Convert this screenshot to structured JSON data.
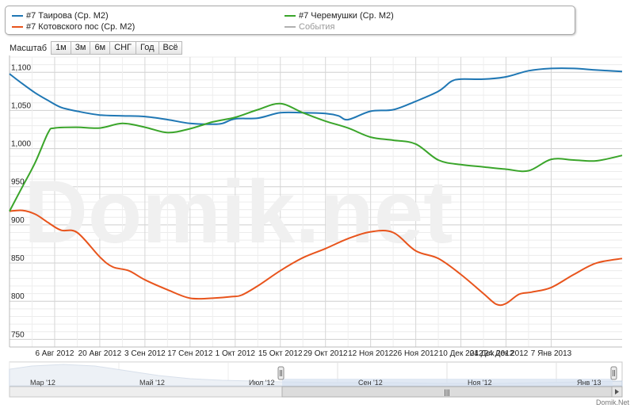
{
  "legend": {
    "items": [
      {
        "label": "#7 Таирова (Ср. М2)",
        "color": "#1f77b4"
      },
      {
        "label": "#7 Котовского пос (Ср. М2)",
        "color": "#e8541c"
      },
      {
        "label": "#7 Черемушки (Ср. М2)",
        "color": "#3aa52a"
      },
      {
        "label": "События",
        "color": "#b0b0b0"
      }
    ]
  },
  "range_selector": {
    "label": "Масштаб",
    "buttons": [
      "1м",
      "3м",
      "6м",
      "СНГ",
      "Год",
      "Всё"
    ]
  },
  "watermark": "Domik.net",
  "credit": "Domik.Net",
  "navigator": {
    "labels": [
      "Мар '12",
      "Май '12",
      "Июл '12",
      "Сен '12",
      "Ноя '12",
      "Янв '13"
    ],
    "scroll_grip": "|||"
  },
  "chart_data": {
    "type": "line",
    "ylim": [
      740,
      1120
    ],
    "yticks": [
      750,
      800,
      850,
      900,
      950,
      1000,
      1050,
      1100
    ],
    "ytick_labels": [
      "750",
      "800",
      "850",
      "900",
      "950",
      "1,000",
      "1,050",
      "1,100"
    ],
    "xlim": [
      "2012-07-23",
      "2013-01-29"
    ],
    "xticks": [
      "2012-08-06",
      "2012-08-20",
      "2012-09-03",
      "2012-09-17",
      "2012-10-01",
      "2012-10-15",
      "2012-10-29",
      "2012-11-12",
      "2012-11-26",
      "2012-12-10",
      "2012-12-24",
      "2013-01-07"
    ],
    "xtick_labels": [
      "6 Авг 2012",
      "20 Авг 2012",
      "3 Сен 2012",
      "17 Сен 2012",
      "1 Окт 2012",
      "15 Окт 2012",
      "29 Окт 2012",
      "12 Ноя 2012",
      "26 Ноя 2012",
      "10 Дек 2012",
      "24 Дек 2012",
      "7 Янв 2013"
    ],
    "overlap_tick_label": "24 Дек 2012",
    "grid": true,
    "series": [
      {
        "name": "#7 Таирова (Ср. М2)",
        "color": "#1f77b4",
        "points": [
          [
            "2012-07-23",
            1098
          ],
          [
            "2012-07-27",
            1085
          ],
          [
            "2012-07-31",
            1073
          ],
          [
            "2012-08-04",
            1063
          ],
          [
            "2012-08-08",
            1054
          ],
          [
            "2012-08-13",
            1049
          ],
          [
            "2012-08-20",
            1044
          ],
          [
            "2012-08-27",
            1043
          ],
          [
            "2012-09-03",
            1042
          ],
          [
            "2012-09-10",
            1038
          ],
          [
            "2012-09-17",
            1033
          ],
          [
            "2012-09-24",
            1032
          ],
          [
            "2012-09-27",
            1033
          ],
          [
            "2012-10-01",
            1039
          ],
          [
            "2012-10-08",
            1040
          ],
          [
            "2012-10-15",
            1047
          ],
          [
            "2012-10-22",
            1047
          ],
          [
            "2012-10-29",
            1046
          ],
          [
            "2012-11-02",
            1043
          ],
          [
            "2012-11-05",
            1038
          ],
          [
            "2012-11-12",
            1049
          ],
          [
            "2012-11-19",
            1051
          ],
          [
            "2012-11-26",
            1062
          ],
          [
            "2012-12-03",
            1075
          ],
          [
            "2012-12-07",
            1088
          ],
          [
            "2012-12-10",
            1091
          ],
          [
            "2012-12-17",
            1091
          ],
          [
            "2012-12-24",
            1094
          ],
          [
            "2012-12-31",
            1102
          ],
          [
            "2013-01-07",
            1105
          ],
          [
            "2013-01-14",
            1105
          ],
          [
            "2013-01-21",
            1103
          ],
          [
            "2013-01-29",
            1101
          ]
        ]
      },
      {
        "name": "#7 Котовского пос (Ср. М2)",
        "color": "#e8541c",
        "points": [
          [
            "2012-07-23",
            918
          ],
          [
            "2012-07-27",
            919
          ],
          [
            "2012-07-31",
            914
          ],
          [
            "2012-08-04",
            903
          ],
          [
            "2012-08-08",
            893
          ],
          [
            "2012-08-13",
            890
          ],
          [
            "2012-08-20",
            858
          ],
          [
            "2012-08-24",
            845
          ],
          [
            "2012-08-29",
            840
          ],
          [
            "2012-09-03",
            828
          ],
          [
            "2012-09-10",
            815
          ],
          [
            "2012-09-17",
            804
          ],
          [
            "2012-09-24",
            804
          ],
          [
            "2012-09-30",
            806
          ],
          [
            "2012-10-03",
            808
          ],
          [
            "2012-10-08",
            820
          ],
          [
            "2012-10-15",
            840
          ],
          [
            "2012-10-22",
            857
          ],
          [
            "2012-10-29",
            869
          ],
          [
            "2012-11-05",
            882
          ],
          [
            "2012-11-12",
            891
          ],
          [
            "2012-11-19",
            890
          ],
          [
            "2012-11-26",
            866
          ],
          [
            "2012-12-03",
            856
          ],
          [
            "2012-12-10",
            835
          ],
          [
            "2012-12-17",
            810
          ],
          [
            "2012-12-21",
            796
          ],
          [
            "2012-12-24",
            797
          ],
          [
            "2012-12-28",
            809
          ],
          [
            "2013-01-01",
            812
          ],
          [
            "2013-01-07",
            818
          ],
          [
            "2013-01-14",
            835
          ],
          [
            "2013-01-21",
            850
          ],
          [
            "2013-01-29",
            856
          ]
        ]
      },
      {
        "name": "#7 Черемушки (Ср. М2)",
        "color": "#3aa52a",
        "points": [
          [
            "2012-07-23",
            918
          ],
          [
            "2012-07-27",
            950
          ],
          [
            "2012-07-31",
            982
          ],
          [
            "2012-08-04",
            1021
          ],
          [
            "2012-08-06",
            1027
          ],
          [
            "2012-08-13",
            1028
          ],
          [
            "2012-08-20",
            1027
          ],
          [
            "2012-08-27",
            1033
          ],
          [
            "2012-09-03",
            1028
          ],
          [
            "2012-09-10",
            1021
          ],
          [
            "2012-09-17",
            1026
          ],
          [
            "2012-09-24",
            1035
          ],
          [
            "2012-10-01",
            1041
          ],
          [
            "2012-10-08",
            1051
          ],
          [
            "2012-10-15",
            1059
          ],
          [
            "2012-10-22",
            1047
          ],
          [
            "2012-10-29",
            1036
          ],
          [
            "2012-11-05",
            1027
          ],
          [
            "2012-11-12",
            1015
          ],
          [
            "2012-11-19",
            1011
          ],
          [
            "2012-11-26",
            1006
          ],
          [
            "2012-12-03",
            985
          ],
          [
            "2012-12-10",
            979
          ],
          [
            "2012-12-17",
            976
          ],
          [
            "2012-12-24",
            973
          ],
          [
            "2012-12-31",
            971
          ],
          [
            "2013-01-07",
            986
          ],
          [
            "2013-01-14",
            985
          ],
          [
            "2013-01-21",
            984
          ],
          [
            "2013-01-29",
            991
          ]
        ]
      }
    ]
  }
}
